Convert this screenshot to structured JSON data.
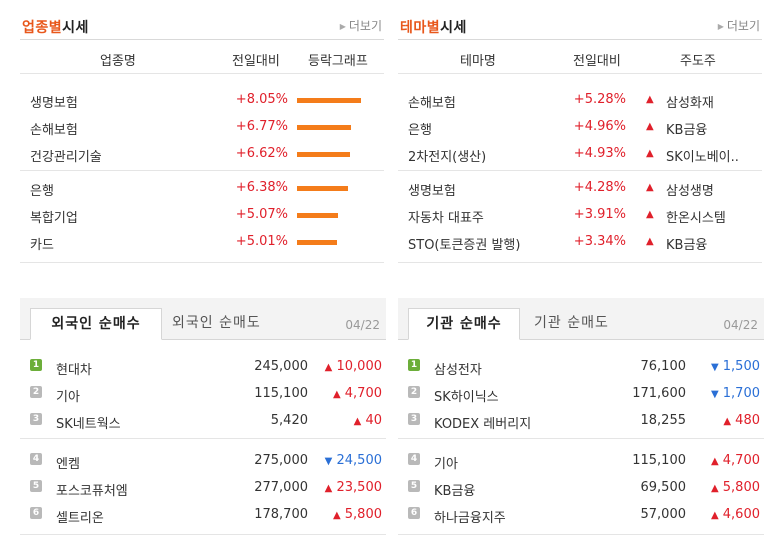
{
  "sector": {
    "title_hl": "업종별",
    "title_rest": "시세",
    "more": "더보기",
    "headers": [
      "업종명",
      "전일대비",
      "등락그래프"
    ],
    "rows": [
      {
        "name": "생명보험",
        "change": "+8.05%",
        "value": 8.05
      },
      {
        "name": "손해보험",
        "change": "+6.77%",
        "value": 6.77
      },
      {
        "name": "건강관리기술",
        "change": "+6.62%",
        "value": 6.62
      },
      {
        "name": "은행",
        "change": "+6.38%",
        "value": 6.38
      },
      {
        "name": "복합기업",
        "change": "+5.07%",
        "value": 5.07
      },
      {
        "name": "카드",
        "change": "+5.01%",
        "value": 5.01
      }
    ]
  },
  "theme": {
    "title_hl": "테마별",
    "title_rest": "시세",
    "more": "더보기",
    "headers": [
      "테마명",
      "전일대비",
      "주도주"
    ],
    "rows": [
      {
        "name": "손해보험",
        "change": "+5.28%",
        "leader": "삼성화재"
      },
      {
        "name": "은행",
        "change": "+4.96%",
        "leader": "KB금융"
      },
      {
        "name": "2차전지(생산)",
        "change": "+4.93%",
        "leader": "SK이노베이.."
      },
      {
        "name": "생명보험",
        "change": "+4.28%",
        "leader": "삼성생명"
      },
      {
        "name": "자동차 대표주",
        "change": "+3.91%",
        "leader": "한온시스템"
      },
      {
        "name": "STO(토큰증권 발행)",
        "change": "+3.34%",
        "leader": "KB금융"
      }
    ]
  },
  "foreign": {
    "tab_active": "외국인 순매수",
    "tab_inactive": "외국인 순매도",
    "date": "04/22",
    "rows": [
      {
        "rank": "1",
        "name": "현대차",
        "price": "245,000",
        "dir": "up",
        "change": "10,000"
      },
      {
        "rank": "2",
        "name": "기아",
        "price": "115,100",
        "dir": "up",
        "change": "4,700"
      },
      {
        "rank": "3",
        "name": "SK네트웍스",
        "price": "5,420",
        "dir": "up",
        "change": "40"
      },
      {
        "rank": "4",
        "name": "엔켐",
        "price": "275,000",
        "dir": "down",
        "change": "24,500"
      },
      {
        "rank": "5",
        "name": "포스코퓨처엠",
        "price": "277,000",
        "dir": "up",
        "change": "23,500"
      },
      {
        "rank": "6",
        "name": "셀트리온",
        "price": "178,700",
        "dir": "up",
        "change": "5,800"
      }
    ]
  },
  "institution": {
    "tab_active": "기관 순매수",
    "tab_inactive": "기관 순매도",
    "date": "04/22",
    "rows": [
      {
        "rank": "1",
        "name": "삼성전자",
        "price": "76,100",
        "dir": "down",
        "change": "1,500"
      },
      {
        "rank": "2",
        "name": "SK하이닉스",
        "price": "171,600",
        "dir": "down",
        "change": "1,700"
      },
      {
        "rank": "3",
        "name": "KODEX 레버리지",
        "price": "18,255",
        "dir": "up",
        "change": "480"
      },
      {
        "rank": "4",
        "name": "기아",
        "price": "115,100",
        "dir": "up",
        "change": "4,700"
      },
      {
        "rank": "5",
        "name": "KB금융",
        "price": "69,500",
        "dir": "up",
        "change": "5,800"
      },
      {
        "rank": "6",
        "name": "하나금융지주",
        "price": "57,000",
        "dir": "up",
        "change": "4,600"
      }
    ]
  },
  "colors": {
    "accent": "#e8571b",
    "up": "#e0202b",
    "down": "#2a6fd6",
    "bar": "#f47c1a"
  }
}
